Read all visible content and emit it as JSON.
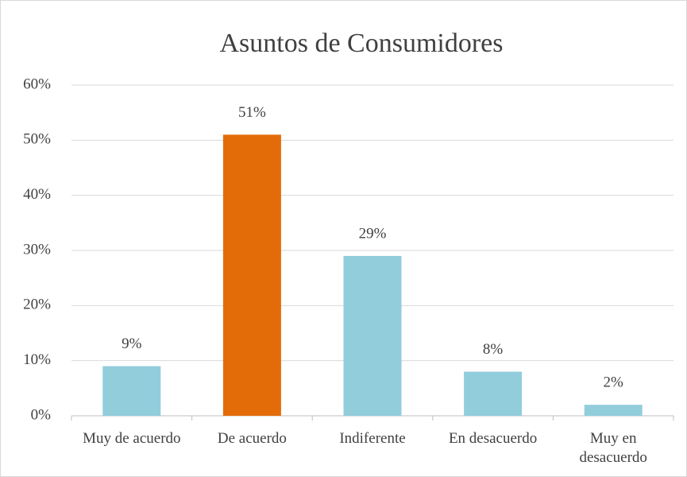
{
  "chart_data": {
    "type": "bar",
    "title": "Asuntos de Consumidores",
    "categories": [
      "Muy de acuerdo",
      "De acuerdo",
      "Indiferente",
      "En desacuerdo",
      "Muy en desacuerdo"
    ],
    "values": [
      9,
      51,
      29,
      8,
      2
    ],
    "value_labels": [
      "9%",
      "51%",
      "29%",
      "8%",
      "2%"
    ],
    "colors": [
      "#92cddc",
      "#e36c09",
      "#92cddc",
      "#92cddc",
      "#92cddc"
    ],
    "ylim": [
      0,
      60
    ],
    "yticks": [
      {
        "value": 0,
        "label": "0%"
      },
      {
        "value": 10,
        "label": "10%"
      },
      {
        "value": 20,
        "label": "20%"
      },
      {
        "value": 30,
        "label": "30%"
      },
      {
        "value": 40,
        "label": "40%"
      },
      {
        "value": 50,
        "label": "50%"
      },
      {
        "value": 60,
        "label": "60%"
      }
    ],
    "grid": true
  }
}
